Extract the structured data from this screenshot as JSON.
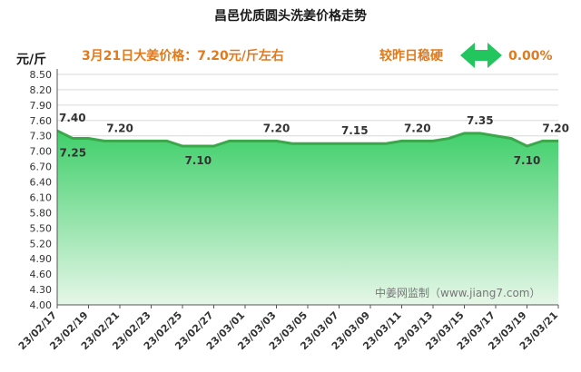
{
  "title": "昌邑优质圆头洗姜价格走势",
  "unit_label": "元/斤",
  "headline_left": "3月21日大姜价格：7.20元/斤左右",
  "headline_right": "较昨日稳硬",
  "change_value": "0.00%",
  "watermark": "中姜网监制（www.jiang7.com）",
  "colors": {
    "line": "#3aa84a",
    "fill_top": "#3fcf6a",
    "fill_bottom": "#e6f7e8",
    "headline": "#e07a1f",
    "arrow": "#22c55e"
  },
  "chart_data": {
    "type": "area",
    "y_ticks": [
      "8.50",
      "8.20",
      "7.90",
      "7.60",
      "7.30",
      "7.00",
      "6.70",
      "6.40",
      "6.10",
      "5.80",
      "5.50",
      "5.20",
      "4.90",
      "4.60",
      "4.30",
      "4.00"
    ],
    "ylim": [
      4.0,
      8.5
    ],
    "x_tick_labels": [
      "23/02/17",
      "23/02/19",
      "23/02/21",
      "23/02/23",
      "23/02/25",
      "23/02/27",
      "23/03/01",
      "23/03/03",
      "23/03/05",
      "23/03/07",
      "23/03/09",
      "23/03/11",
      "23/03/13",
      "23/03/15",
      "23/03/17",
      "23/03/19",
      "23/03/21"
    ],
    "dates": [
      "23/02/17",
      "23/02/18",
      "23/02/19",
      "23/02/20",
      "23/02/21",
      "23/02/22",
      "23/02/23",
      "23/02/24",
      "23/02/25",
      "23/02/26",
      "23/02/27",
      "23/02/28",
      "23/03/01",
      "23/03/02",
      "23/03/03",
      "23/03/04",
      "23/03/05",
      "23/03/06",
      "23/03/07",
      "23/03/08",
      "23/03/09",
      "23/03/10",
      "23/03/11",
      "23/03/12",
      "23/03/13",
      "23/03/14",
      "23/03/15",
      "23/03/16",
      "23/03/17",
      "23/03/18",
      "23/03/19",
      "23/03/20",
      "23/03/21"
    ],
    "values": [
      7.4,
      7.25,
      7.25,
      7.2,
      7.2,
      7.2,
      7.2,
      7.2,
      7.1,
      7.1,
      7.1,
      7.2,
      7.2,
      7.2,
      7.2,
      7.15,
      7.15,
      7.15,
      7.15,
      7.15,
      7.15,
      7.15,
      7.2,
      7.2,
      7.2,
      7.25,
      7.35,
      7.35,
      7.3,
      7.25,
      7.1,
      7.2,
      7.2
    ],
    "data_labels": [
      {
        "index": 0,
        "text": "7.40"
      },
      {
        "index": 1,
        "text": "7.25"
      },
      {
        "index": 4,
        "text": "7.20"
      },
      {
        "index": 9,
        "text": "7.10"
      },
      {
        "index": 14,
        "text": "7.20"
      },
      {
        "index": 19,
        "text": "7.15"
      },
      {
        "index": 23,
        "text": "7.20"
      },
      {
        "index": 27,
        "text": "7.35"
      },
      {
        "index": 30,
        "text": "7.10"
      },
      {
        "index": 32,
        "text": "7.20"
      }
    ],
    "grid": true
  }
}
